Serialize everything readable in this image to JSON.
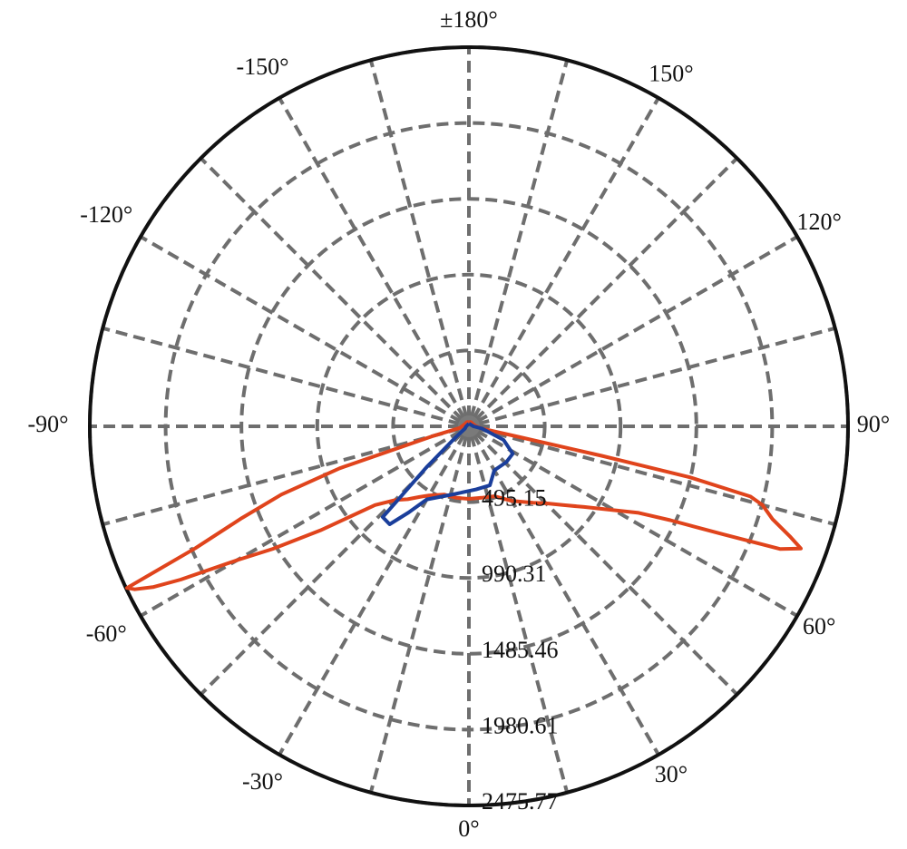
{
  "chart_data": {
    "type": "polar",
    "rlim": [
      0,
      2475.77
    ],
    "rticks": [
      495.15,
      990.31,
      1485.46,
      1980.61,
      2475.77
    ],
    "theta_ticks": [
      {
        "value": 0,
        "label": "0°"
      },
      {
        "value": 30,
        "label": "30°"
      },
      {
        "value": 60,
        "label": "60°"
      },
      {
        "value": 90,
        "label": "90°"
      },
      {
        "value": 120,
        "label": "120°"
      },
      {
        "value": 150,
        "label": "150°"
      },
      {
        "value": 180,
        "label": "±180°"
      },
      {
        "value": -150,
        "label": "-150°"
      },
      {
        "value": -120,
        "label": "-120°"
      },
      {
        "value": -90,
        "label": "-90°"
      },
      {
        "value": -60,
        "label": "-60°"
      },
      {
        "value": -30,
        "label": "-30°"
      }
    ],
    "theta_minor_ticks": [
      15,
      45,
      75,
      105,
      135,
      165,
      -165,
      -135,
      -105,
      -75,
      -45,
      -15
    ],
    "grid": true,
    "series": [
      {
        "color": "#e0441c",
        "theta": [
          -180,
          -150,
          -120,
          -90,
          -80,
          -75,
          -72,
          -70,
          -68,
          -66,
          -64.7,
          -64,
          -63,
          -62,
          -60,
          -58,
          -55,
          -50,
          -45,
          -40,
          -35,
          -30,
          -20,
          -10,
          0,
          10,
          20,
          30,
          40,
          45,
          50,
          55,
          60,
          63,
          65,
          67,
          68.5,
          69.8,
          71,
          73,
          75,
          76,
          77,
          77.5,
          78,
          80,
          90,
          120,
          150,
          180
        ],
        "values": [
          30,
          30,
          30,
          47,
          59,
          237,
          888,
          1303,
          1599,
          1955,
          2470,
          2428,
          2310,
          2132,
          1747,
          1510,
          1185,
          800,
          681,
          622,
          563,
          521,
          474,
          474,
          474,
          474,
          486,
          563,
          652,
          711,
          800,
          918,
          1096,
          1244,
          1451,
          1807,
          2186,
          2310,
          2221,
          2073,
          1984,
          1895,
          1481,
          888,
          355,
          89,
          47,
          30,
          30,
          30
        ]
      },
      {
        "color": "#1a3e9b",
        "theta": [
          -180,
          -90,
          -60,
          -50,
          -46,
          -44,
          -43.5,
          -39,
          -35,
          -30,
          -13,
          6.5,
          19.5,
          30,
          46,
          58,
          68.5,
          80,
          90,
          180
        ],
        "values": [
          18,
          18,
          30,
          118,
          385,
          657,
          817,
          823,
          687,
          551,
          456,
          415,
          409,
          332,
          338,
          338,
          243,
          89,
          30,
          18
        ]
      }
    ]
  }
}
